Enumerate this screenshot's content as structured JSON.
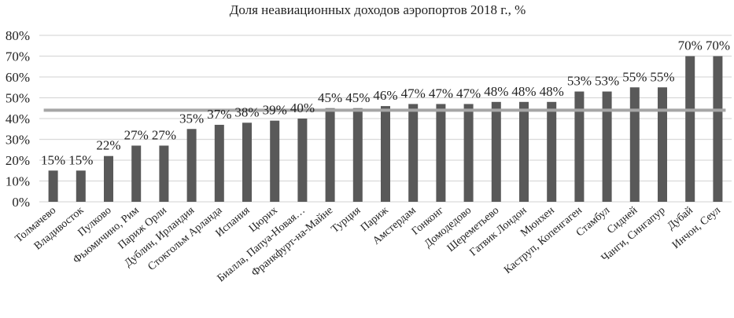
{
  "chart_data": {
    "type": "bar",
    "title": "Доля неавиационных доходов аэропортов 2018 г., %",
    "xlabel": "",
    "ylabel": "",
    "ylim": [
      0,
      80
    ],
    "yticks": [
      "0%",
      "10%",
      "20%",
      "30%",
      "40%",
      "50%",
      "60%",
      "70%",
      "80%"
    ],
    "grid": true,
    "legend": "none",
    "categories": [
      "Толмачево",
      "Владивосток",
      "Пулково",
      "Фьюмичино, Рим",
      "Париж Орли",
      "Дублин, Ирландия",
      "Стокгольм Арланда",
      "Испания",
      "Цюрих",
      "Биалла, Папуа-Новая…",
      "Франкфурт-на-Майне",
      "Турция",
      "Париж",
      "Амстердам",
      "Гонконг",
      "Домодедово",
      "Шереметьево",
      "Гатвик Лондон",
      "Мюнхен",
      "Каструп, Копенгаген",
      "Стамбул",
      "Сидней",
      "Чанги, Сингапур",
      "Дубай",
      "Инчон, Сеул"
    ],
    "values": [
      15,
      15,
      22,
      27,
      27,
      35,
      37,
      38,
      39,
      40,
      45,
      45,
      46,
      47,
      47,
      47,
      48,
      48,
      48,
      53,
      53,
      55,
      55,
      70,
      70
    ],
    "data_labels": [
      "15%",
      "15%",
      "22%",
      "27%",
      "27%",
      "35%",
      "37%",
      "38%",
      "39%",
      "40%",
      "45%",
      "45%",
      "46%",
      "47%",
      "47%",
      "47%",
      "48%",
      "48%",
      "48%",
      "53%",
      "53%",
      "55%",
      "55%",
      "70%",
      "70%"
    ],
    "average_line": 44,
    "colors": {
      "bar": "#595959",
      "average_line": "#a6a6a6",
      "grid": "#d9d9d9"
    }
  }
}
